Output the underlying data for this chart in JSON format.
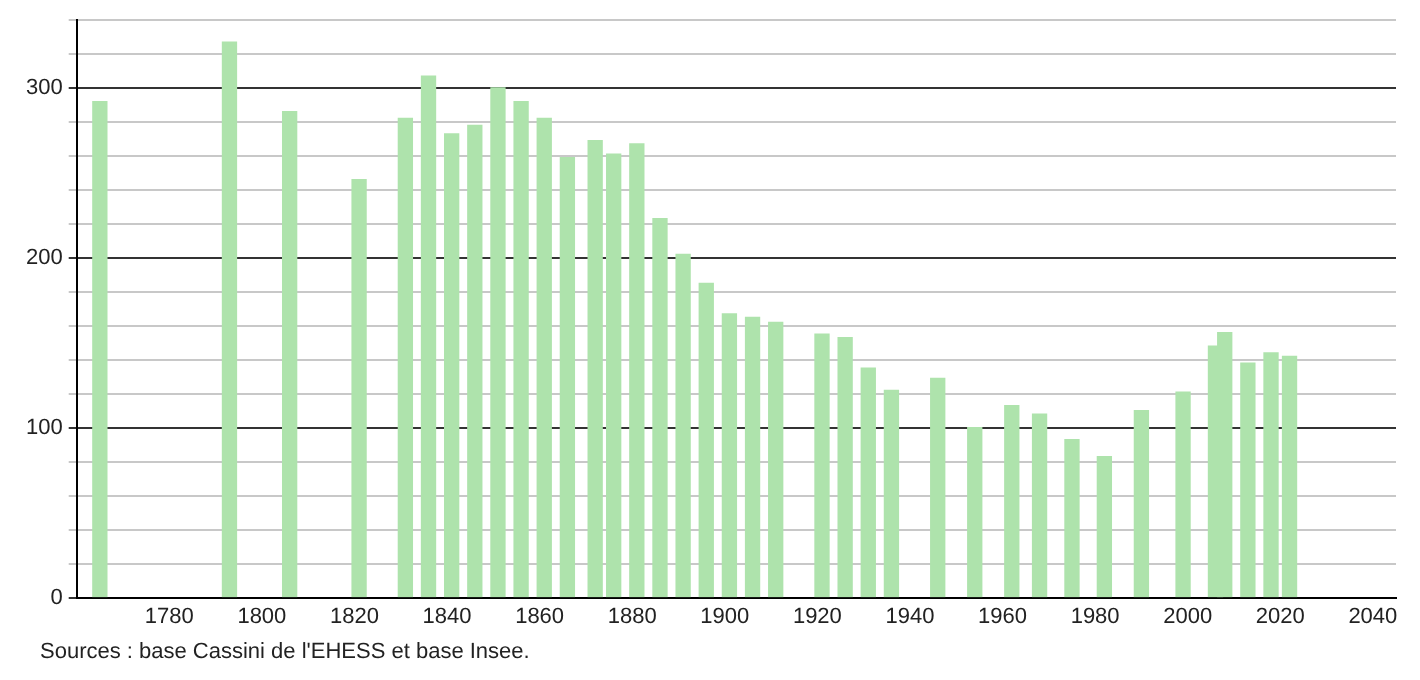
{
  "chart_data": {
    "type": "bar",
    "x": [
      1765,
      1793,
      1806,
      1821,
      1831,
      1836,
      1841,
      1846,
      1851,
      1856,
      1861,
      1866,
      1872,
      1876,
      1881,
      1886,
      1891,
      1896,
      1901,
      1906,
      1911,
      1921,
      1926,
      1931,
      1936,
      1946,
      1954,
      1962,
      1968,
      1975,
      1982,
      1990,
      1999,
      2006,
      2008,
      2013,
      2018,
      2022
    ],
    "values": [
      292,
      327,
      286,
      246,
      282,
      307,
      273,
      278,
      300,
      292,
      282,
      259,
      269,
      261,
      267,
      223,
      202,
      185,
      167,
      165,
      162,
      155,
      153,
      135,
      122,
      129,
      100,
      113,
      108,
      93,
      83,
      110,
      121,
      148,
      156,
      138,
      144,
      142
    ],
    "color": "#aee3ac",
    "xlim": [
      1760,
      2045
    ],
    "xticks": [
      1780,
      1800,
      1820,
      1840,
      1860,
      1880,
      1900,
      1920,
      1940,
      1960,
      1980,
      2000,
      2020,
      2040
    ],
    "ylim": [
      0,
      340
    ],
    "yticks": [
      0,
      {
        "value": 20,
        "label": null
      },
      {
        "value": 40,
        "label": null
      },
      {
        "value": 60,
        "label": null
      },
      {
        "value": 80,
        "label": null
      },
      100,
      {
        "value": 120,
        "label": null
      },
      {
        "value": 140,
        "label": null
      },
      {
        "value": 160,
        "label": null
      },
      {
        "value": 180,
        "label": null
      },
      200,
      {
        "value": 220,
        "label": null
      },
      {
        "value": 240,
        "label": null
      },
      {
        "value": 260,
        "label": null
      },
      {
        "value": 280,
        "label": null
      },
      300,
      {
        "value": 320,
        "label": null
      },
      {
        "value": 340,
        "label": null
      }
    ],
    "grid": "y",
    "legend": false,
    "annotations": [
      "Sources : base Cassini de l'EHESS et base Insee."
    ]
  }
}
